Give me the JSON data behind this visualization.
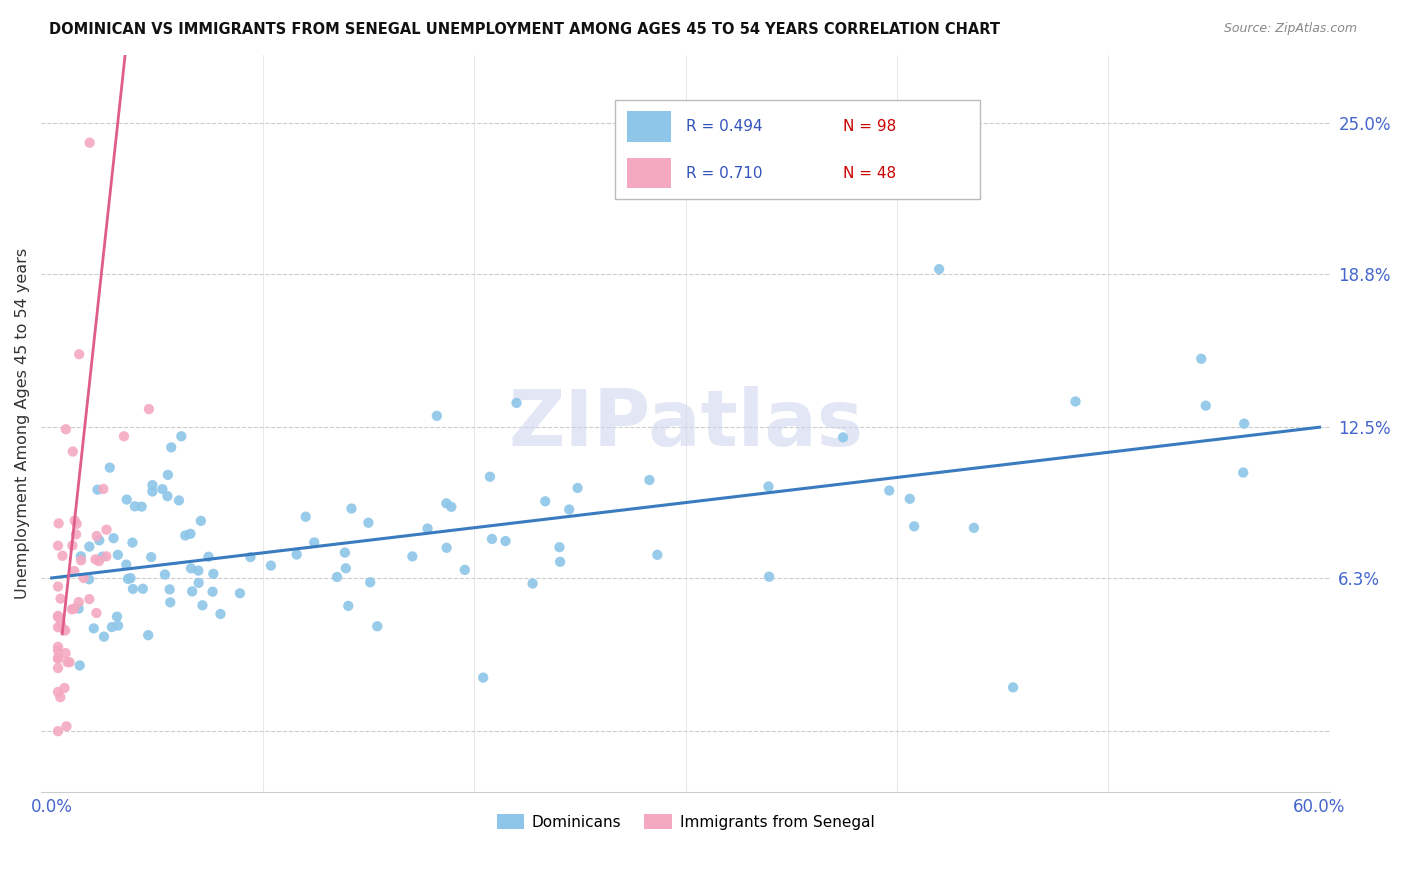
{
  "title": "DOMINICAN VS IMMIGRANTS FROM SENEGAL UNEMPLOYMENT AMONG AGES 45 TO 54 YEARS CORRELATION CHART",
  "source": "Source: ZipAtlas.com",
  "ylabel": "Unemployment Among Ages 45 to 54 years",
  "xlim": [
    -0.005,
    0.605
  ],
  "ylim": [
    -0.025,
    0.278
  ],
  "ytick_positions": [
    0.0,
    0.063,
    0.125,
    0.188,
    0.25
  ],
  "yticklabels": [
    "",
    "6.3%",
    "12.5%",
    "18.8%",
    "25.0%"
  ],
  "xtick_positions": [
    0.0,
    0.1,
    0.2,
    0.3,
    0.4,
    0.5,
    0.6
  ],
  "xticklabels": [
    "0.0%",
    "",
    "",
    "",
    "",
    "",
    "60.0%"
  ],
  "blue_color": "#8dc6e8",
  "pink_color": "#f4a9c0",
  "blue_line_color": "#3a7bbf",
  "pink_line_color": "#e05c8a",
  "watermark": "ZIPatlas",
  "blue_line_x0": 0.0,
  "blue_line_y0": 0.063,
  "blue_line_x1": 0.6,
  "blue_line_y1": 0.125,
  "pink_line_x0": 0.005,
  "pink_line_y0": 0.04,
  "pink_line_x1": 0.035,
  "pink_line_y1": 0.28
}
